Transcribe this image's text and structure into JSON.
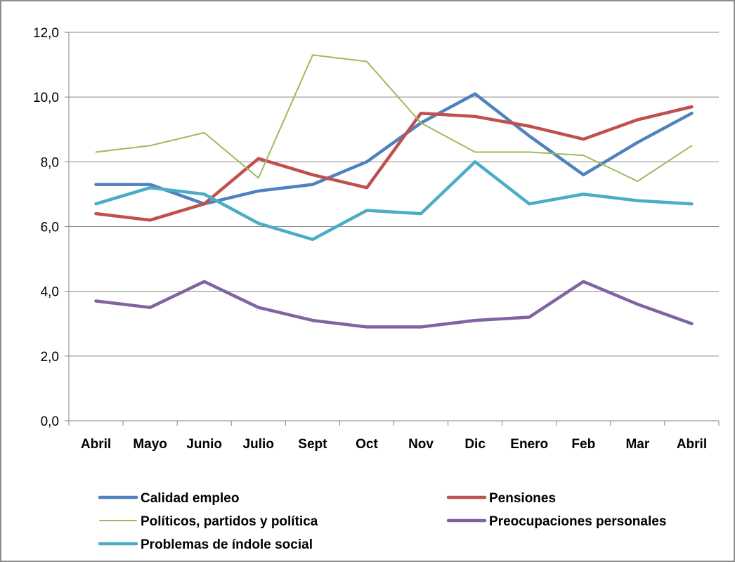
{
  "chart_data": {
    "type": "line",
    "title": "",
    "xlabel": "",
    "ylabel": "",
    "ylim": [
      0,
      12
    ],
    "yticks": [
      "0,0",
      "2,0",
      "4,0",
      "6,0",
      "8,0",
      "10,0",
      "12,0"
    ],
    "grid": true,
    "legend_position": "bottom",
    "categories": [
      "Abril",
      "Mayo",
      "Junio",
      "Julio",
      "Sept",
      "Oct",
      "Nov",
      "Dic",
      "Enero",
      "Feb",
      "Mar",
      "Abril"
    ],
    "series": [
      {
        "name": "Calidad empleo",
        "color": "#4F81BD",
        "values": [
          7.3,
          7.3,
          6.7,
          7.1,
          7.3,
          8.0,
          9.2,
          10.1,
          8.8,
          7.6,
          8.6,
          9.5
        ]
      },
      {
        "name": "Pensiones",
        "color": "#C0504D",
        "values": [
          6.4,
          6.2,
          6.7,
          8.1,
          7.6,
          7.2,
          9.5,
          9.4,
          9.1,
          8.7,
          9.3,
          9.7
        ]
      },
      {
        "name": "Políticos, partidos y política",
        "color": "#9BBB59",
        "values": [
          8.3,
          8.5,
          8.9,
          7.5,
          11.3,
          11.1,
          9.2,
          8.3,
          8.3,
          8.2,
          7.4,
          8.5
        ]
      },
      {
        "name": "Preocupaciones personales",
        "color": "#8064A2",
        "values": [
          3.7,
          3.5,
          4.3,
          3.5,
          3.1,
          2.9,
          2.9,
          3.1,
          3.2,
          4.3,
          3.6,
          3.0
        ]
      },
      {
        "name": "Problemas de índole social",
        "color": "#4BACC6",
        "values": [
          6.7,
          7.2,
          7.0,
          6.1,
          5.6,
          6.5,
          6.4,
          8.0,
          6.7,
          7.0,
          6.8,
          6.7
        ]
      }
    ]
  }
}
